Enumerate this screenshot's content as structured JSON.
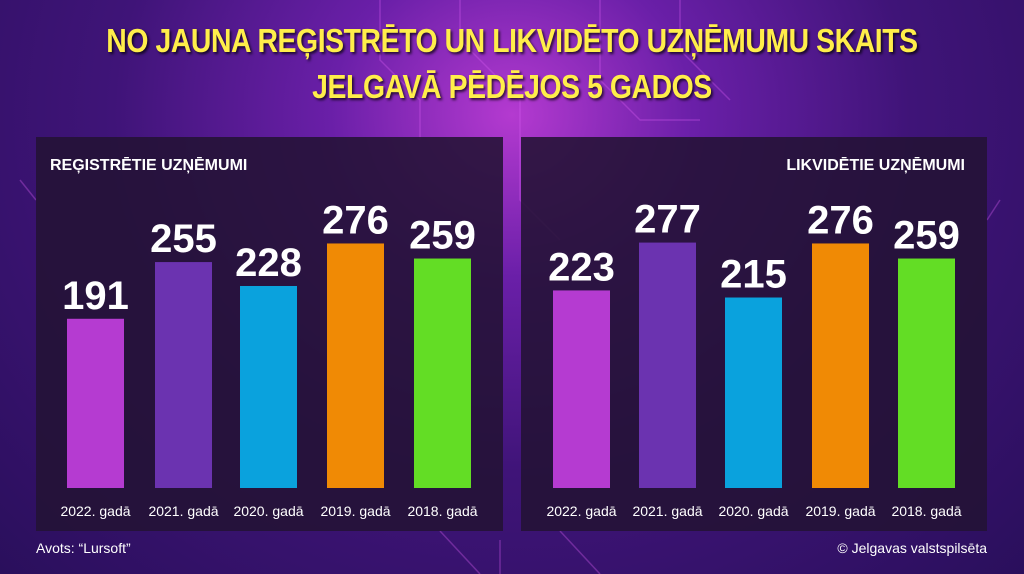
{
  "title": {
    "line1": "NO JAUNA REĢISTRĒTO UN LIKVIDĒTO UZŅĒMUMU SKAITS",
    "line2": "JELGAVĀ PĒDĒJOS 5 GADOS"
  },
  "colors": {
    "title": "#ffee4a",
    "bars": [
      "#b53bd1",
      "#6b33b0",
      "#0aa2dd",
      "#f08a05",
      "#63dd25"
    ]
  },
  "chart_data": [
    {
      "type": "bar",
      "title": "REĢISTRĒTIE UZŅĒMUMI",
      "categories": [
        "2022. gadā",
        "2021. gadā",
        "2020. gadā",
        "2019. gadā",
        "2018. gadā"
      ],
      "values": [
        191,
        255,
        228,
        276,
        259
      ],
      "value_labels": [
        "191",
        "255",
        "228",
        "276",
        "259"
      ],
      "ylim": [
        0,
        300
      ],
      "grid": false
    },
    {
      "type": "bar",
      "title": "LIKVIDĒTIE UZŅĒMUMI",
      "categories": [
        "2022. gadā",
        "2021. gadā",
        "2020. gadā",
        "2019. gadā",
        "2018. gadā"
      ],
      "values": [
        223,
        277,
        215,
        276,
        259
      ],
      "value_labels": [
        "223",
        "277",
        "215",
        "276",
        "259"
      ],
      "ylim": [
        0,
        300
      ],
      "grid": false
    }
  ],
  "footer": {
    "source": "Avots: “Lursoft”",
    "copyright": "© Jelgavas valstspilsēta"
  }
}
